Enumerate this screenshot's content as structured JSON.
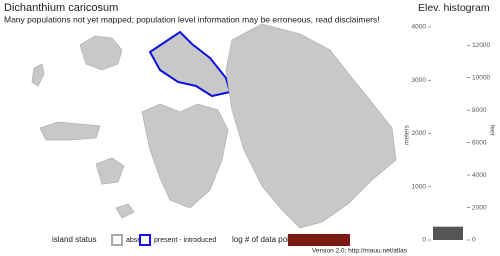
{
  "header": {
    "title": "Dichanthium caricosum",
    "subtitle": "Many populations not yet mapped; population level information may be erroneous, read disclaimers!"
  },
  "histogram": {
    "title": "Elev. histogram",
    "y_label": "meters",
    "y2_label": "feet",
    "ylim": [
      0,
      4000
    ],
    "yticks": [
      0,
      1000,
      2000,
      3000,
      4000
    ],
    "y2lim": [
      0,
      13123
    ],
    "y2ticks": [
      0,
      2000,
      4000,
      6000,
      8000,
      10000,
      12000
    ],
    "bins": [
      0,
      250
    ],
    "color": "#555555"
  },
  "legend": {
    "status_title": "island status",
    "absent": "absent",
    "present": "present - introduced",
    "points_title": "log # of data points",
    "points_color": "#7b1a12"
  },
  "footer": "Version 2.0; http://mauu.net/atlas"
}
